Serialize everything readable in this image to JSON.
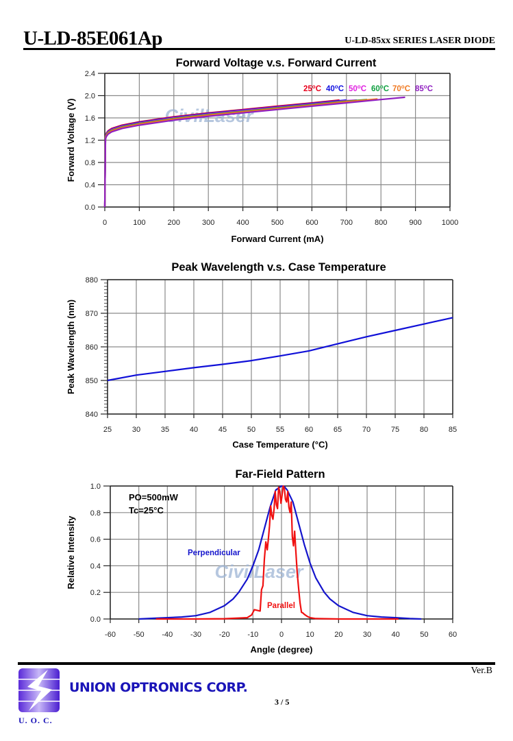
{
  "header": {
    "part_number": "U-LD-85E061Ap",
    "series": "U-LD-85xx SERIES LASER DIODE"
  },
  "footer": {
    "version": "Ver.B",
    "company": "UNION OPTRONICS CORP.",
    "page": "3 / 5",
    "logo_text": "U. O. C.",
    "logo_icon": "lightning-bolt-icon"
  },
  "watermark": "CivilLaser",
  "chart_data": [
    {
      "type": "line",
      "title": "Forward Voltage v.s. Forward Current",
      "xlabel": "Forward Current (mA)",
      "ylabel": "Forward Voltage (V)",
      "xlim": [
        0,
        1000
      ],
      "ylim": [
        0,
        2.4
      ],
      "xticks": [
        "0",
        "100",
        "200",
        "300",
        "400",
        "500",
        "600",
        "700",
        "800",
        "900",
        "1000"
      ],
      "yticks": [
        "0.0",
        "0.4",
        "0.8",
        "1.2",
        "1.6",
        "2.0",
        "2.4"
      ],
      "grid": true,
      "legend_position": "top-right",
      "series": [
        {
          "name": "25°C",
          "color": "#e8001c",
          "x": [
            0,
            2,
            5,
            10,
            20,
            50,
            100,
            200,
            300,
            400,
            500,
            600,
            680
          ],
          "y": [
            0,
            1.28,
            1.33,
            1.37,
            1.41,
            1.47,
            1.53,
            1.62,
            1.69,
            1.75,
            1.81,
            1.87,
            1.92
          ]
        },
        {
          "name": "40°C",
          "color": "#1010e0",
          "x": [
            0,
            2,
            5,
            10,
            20,
            50,
            100,
            200,
            300,
            400,
            500,
            600,
            700
          ],
          "y": [
            0,
            1.27,
            1.32,
            1.36,
            1.4,
            1.46,
            1.52,
            1.61,
            1.68,
            1.74,
            1.8,
            1.86,
            1.92
          ]
        },
        {
          "name": "50°C",
          "color": "#e020e0",
          "x": [
            0,
            2,
            5,
            10,
            20,
            50,
            100,
            200,
            300,
            400,
            500,
            600,
            700,
            730
          ],
          "y": [
            0,
            1.26,
            1.31,
            1.35,
            1.39,
            1.45,
            1.51,
            1.6,
            1.67,
            1.73,
            1.79,
            1.85,
            1.91,
            1.92
          ]
        },
        {
          "name": "60°C",
          "color": "#10a040",
          "x": [
            0,
            2,
            5,
            10,
            20,
            50,
            100,
            200,
            300,
            400,
            500,
            600,
            700,
            760
          ],
          "y": [
            0,
            1.25,
            1.3,
            1.34,
            1.38,
            1.44,
            1.5,
            1.59,
            1.66,
            1.72,
            1.78,
            1.84,
            1.9,
            1.93
          ]
        },
        {
          "name": "70°C",
          "color": "#f07820",
          "x": [
            0,
            2,
            5,
            10,
            20,
            50,
            100,
            200,
            300,
            400,
            500,
            600,
            700,
            790
          ],
          "y": [
            0,
            1.24,
            1.29,
            1.33,
            1.37,
            1.43,
            1.49,
            1.58,
            1.65,
            1.71,
            1.77,
            1.83,
            1.89,
            1.94
          ]
        },
        {
          "name": "85°C",
          "color": "#9020c0",
          "x": [
            0,
            2,
            5,
            10,
            20,
            50,
            100,
            200,
            300,
            400,
            500,
            600,
            700,
            800,
            870
          ],
          "y": [
            0,
            1.22,
            1.27,
            1.31,
            1.35,
            1.41,
            1.47,
            1.56,
            1.63,
            1.69,
            1.75,
            1.81,
            1.87,
            1.93,
            1.97
          ]
        }
      ]
    },
    {
      "type": "line",
      "title": "Peak Wavelength v.s. Case Temperature",
      "xlabel": "Case Temperature (°C)",
      "ylabel": "Peak Wavelength (nm)",
      "xlim": [
        25,
        85
      ],
      "ylim": [
        840,
        880
      ],
      "xticks": [
        "25",
        "30",
        "35",
        "40",
        "45",
        "50",
        "55",
        "60",
        "65",
        "70",
        "75",
        "80",
        "85"
      ],
      "yticks": [
        "840",
        "850",
        "860",
        "870",
        "880"
      ],
      "grid": true,
      "series": [
        {
          "name": "Peak Wavelength",
          "color": "#1010d8",
          "x": [
            25,
            30,
            35,
            40,
            45,
            50,
            55,
            60,
            65,
            70,
            75,
            80,
            85
          ],
          "y": [
            850.0,
            851.6,
            852.7,
            853.8,
            854.8,
            855.9,
            857.3,
            858.8,
            860.9,
            863.0,
            864.9,
            866.8,
            868.7
          ]
        }
      ]
    },
    {
      "type": "line",
      "title": "Far-Field Pattern",
      "xlabel": "Angle (degree)",
      "ylabel": "Relative Intensity",
      "xlim": [
        -60,
        60
      ],
      "ylim": [
        0,
        1.0
      ],
      "xticks": [
        "-60",
        "-50",
        "-40",
        "-30",
        "-20",
        "-10",
        "0",
        "10",
        "20",
        "30",
        "40",
        "50",
        "60"
      ],
      "yticks": [
        "0.0",
        "0.2",
        "0.4",
        "0.6",
        "0.8",
        "1.0"
      ],
      "grid": true,
      "annotations": [
        "PO=500mW",
        "Tc=25°C"
      ],
      "series": [
        {
          "name": "Perpendicular",
          "color": "#1414cc",
          "x": [
            -50,
            -45,
            -40,
            -35,
            -30,
            -25,
            -20,
            -17,
            -15,
            -12,
            -10,
            -8,
            -6,
            -4,
            -2,
            -1,
            0,
            1,
            2,
            4,
            6,
            8,
            10,
            12,
            15,
            17,
            20,
            25,
            30,
            35,
            40,
            45,
            49
          ],
          "y": [
            0.0,
            0.005,
            0.01,
            0.015,
            0.025,
            0.05,
            0.1,
            0.15,
            0.2,
            0.3,
            0.4,
            0.52,
            0.68,
            0.84,
            0.97,
            0.985,
            1.0,
            0.995,
            0.97,
            0.88,
            0.72,
            0.56,
            0.42,
            0.31,
            0.2,
            0.15,
            0.1,
            0.05,
            0.025,
            0.015,
            0.01,
            0.003,
            0.0
          ]
        },
        {
          "name": "Parallel",
          "color": "#f01010",
          "x": [
            -44,
            -30,
            -20,
            -12,
            -10.5,
            -9.5,
            -8.5,
            -7.5,
            -7,
            -6.5,
            -6,
            -5.5,
            -5,
            -4.6,
            -4.2,
            -3.8,
            -3.4,
            -3,
            -2.6,
            -2.2,
            -1.8,
            -1.4,
            -1,
            -0.6,
            -0.2,
            0.2,
            0.6,
            1,
            1.4,
            1.8,
            2.2,
            2.6,
            3,
            3.4,
            3.8,
            4.2,
            4.6,
            5,
            5.5,
            6,
            6.5,
            7,
            7.5,
            8,
            9,
            10,
            12,
            20,
            30,
            41
          ],
          "y": [
            0.0,
            0.0,
            0.002,
            0.01,
            0.03,
            0.07,
            0.065,
            0.06,
            0.22,
            0.25,
            0.45,
            0.58,
            0.52,
            0.6,
            0.7,
            0.85,
            0.78,
            0.75,
            0.83,
            0.96,
            0.86,
            0.83,
            0.99,
            0.96,
            0.87,
            0.93,
            1.0,
            0.98,
            0.9,
            0.88,
            0.96,
            0.84,
            0.8,
            0.88,
            0.62,
            0.55,
            0.66,
            0.52,
            0.35,
            0.23,
            0.12,
            0.05,
            0.045,
            0.035,
            0.02,
            0.01,
            0.003,
            0.0,
            0.0,
            0.0
          ]
        }
      ]
    }
  ]
}
